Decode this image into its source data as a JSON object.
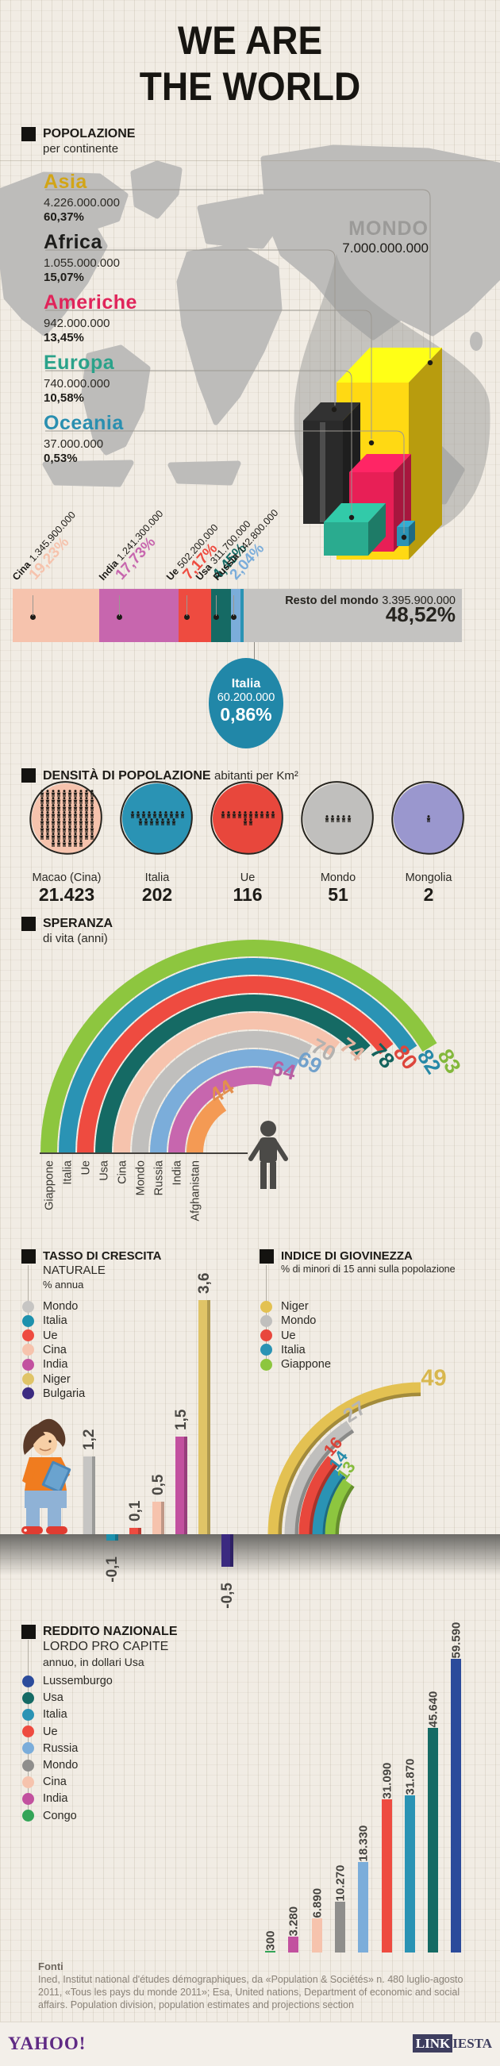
{
  "page": {
    "title_line1": "WE ARE",
    "title_line2": "THE WORLD"
  },
  "population": {
    "heading": "POPOLAZIONE",
    "subheading": "per continente",
    "world": {
      "label": "MONDO",
      "value": "7.000.000.000"
    },
    "continents": [
      {
        "name": "Asia",
        "value": "4.226.000.000",
        "pct": "60,37%",
        "color": "#d2a517"
      },
      {
        "name": "Africa",
        "value": "1.055.000.000",
        "pct": "15,07%",
        "color": "#1d1d1b"
      },
      {
        "name": "Americhe",
        "value": "942.000.000",
        "pct": "13,45%",
        "color": "#e0245a"
      },
      {
        "name": "Europa",
        "value": "740.000.000",
        "pct": "10,58%",
        "color": "#2aa28a"
      },
      {
        "name": "Oceania",
        "value": "37.000.000",
        "pct": "0,53%",
        "color": "#2a8fb0"
      }
    ],
    "cube_colors": {
      "Asia": "#ffd913",
      "Africa": "#2a2a2a",
      "Americhe": "#e81f56",
      "Europa": "#2aab8f",
      "Oceania": "#2a93b4"
    }
  },
  "share": {
    "segments": [
      {
        "name": "Cina",
        "value": "1.345.900.000",
        "pct": "19,23%",
        "pct_num": 19.23,
        "color": "#f6c3ad"
      },
      {
        "name": "India",
        "value": "1.241.300.000",
        "pct": "17,73%",
        "pct_num": 17.73,
        "color": "#c766ae"
      },
      {
        "name": "Ue",
        "value": "502.200.000",
        "pct": "7,17%",
        "pct_num": 7.17,
        "color": "#ee4b40"
      },
      {
        "name": "Usa",
        "value": "311.700.000",
        "pct": "4,45%",
        "pct_num": 4.45,
        "color": "#156a64"
      },
      {
        "name": "Russia",
        "value": "142.800.000",
        "pct": "2,04%",
        "pct_num": 2.04,
        "color": "#7badda"
      }
    ],
    "italy": {
      "name": "Italia",
      "value": "60.200.000",
      "pct": "0,86%",
      "pct_num": 0.86,
      "color": "#2a93b4",
      "circle_color": "#2187a8"
    },
    "rest": {
      "name": "Resto del mondo",
      "value": "3.395.900.000",
      "pct": "48,52%",
      "pct_num": 48.52,
      "color": "#c4c3c1"
    }
  },
  "density": {
    "heading": "DENSITÀ DI POPOLAZIONE",
    "subheading": "abitanti per Km²",
    "items": [
      {
        "name": "Macao (Cina)",
        "value": "21.423",
        "color": "#f6c3ad",
        "people": 76
      },
      {
        "name": "Italia",
        "value": "202",
        "color": "#2a93b4",
        "people": 17
      },
      {
        "name": "Ue",
        "value": "116",
        "color": "#e8473c",
        "people": 12
      },
      {
        "name": "Mondo",
        "value": "51",
        "color": "#c0bfbd",
        "people": 5
      },
      {
        "name": "Mongolia",
        "value": "2",
        "color": "#9a97ce",
        "people": 1
      }
    ]
  },
  "life": {
    "heading": "SPERANZA",
    "subheading": "di vita (anni)",
    "items": [
      {
        "name": "Giappone",
        "value": 83,
        "label": "83",
        "color": "#8dc63f"
      },
      {
        "name": "Italia",
        "value": 82,
        "label": "82",
        "color": "#2a93b4"
      },
      {
        "name": "Ue",
        "value": 80,
        "label": "80",
        "color": "#ee4b40"
      },
      {
        "name": "Usa",
        "value": 78,
        "label": "78",
        "color": "#156a64"
      },
      {
        "name": "Cina",
        "value": 74,
        "label": "74",
        "color": "#f6c3ad"
      },
      {
        "name": "Mondo",
        "value": 70,
        "label": "70",
        "color": "#c0bfbd"
      },
      {
        "name": "Russia",
        "value": 69,
        "label": "69",
        "color": "#7badda"
      },
      {
        "name": "India",
        "value": 64,
        "label": "64",
        "color": "#c766ae"
      },
      {
        "name": "Afghanistan",
        "value": 44,
        "label": "44",
        "color": "#f49a54"
      }
    ]
  },
  "growth": {
    "heading": "TASSO DI CRESCITA",
    "heading2": "NATURALE",
    "subheading": "% annua",
    "items": [
      {
        "name": "Mondo",
        "value": 1.2,
        "label": "1,2",
        "color": "#c6c5c3"
      },
      {
        "name": "Italia",
        "value": -0.1,
        "label": "-0,1",
        "color": "#1d91ad"
      },
      {
        "name": "Ue",
        "value": 0.1,
        "label": "0,1",
        "color": "#ee4b40"
      },
      {
        "name": "Cina",
        "value": 0.5,
        "label": "0,5",
        "color": "#f6c3ad"
      },
      {
        "name": "India",
        "value": 1.5,
        "label": "1,5",
        "color": "#c2519f"
      },
      {
        "name": "Niger",
        "value": 3.6,
        "label": "3,6",
        "color": "#e0c467"
      },
      {
        "name": "Bulgaria",
        "value": -0.5,
        "label": "-0,5",
        "color": "#3b2a80"
      }
    ]
  },
  "youth": {
    "heading": "INDICE DI GIOVINEZZA",
    "subheading": "% di minori di 15 anni sulla popolazione",
    "items": [
      {
        "name": "Niger",
        "value": 49,
        "label": "49",
        "color": "#e3c152"
      },
      {
        "name": "Mondo",
        "value": 27,
        "label": "27",
        "color": "#c0bfbd"
      },
      {
        "name": "Ue",
        "value": 16,
        "label": "16",
        "color": "#e8473c"
      },
      {
        "name": "Italia",
        "value": 14,
        "label": "14",
        "color": "#2a93b4"
      },
      {
        "name": "Giappone",
        "value": 13,
        "label": "13",
        "color": "#8dc63f"
      }
    ]
  },
  "income": {
    "heading": "REDDITO NAZIONALE",
    "heading2": "LORDO PRO CAPITE",
    "subheading": "annuo, in dollari Usa",
    "items": [
      {
        "name": "Lussemburgo",
        "value": 59590,
        "label": "59.590",
        "color": "#2b4b9b"
      },
      {
        "name": "Usa",
        "value": 45640,
        "label": "45.640",
        "color": "#156a64"
      },
      {
        "name": "Italia",
        "value": 31870,
        "label": "31.870",
        "color": "#2a93b4"
      },
      {
        "name": "Ue",
        "value": 31090,
        "label": "31.090",
        "color": "#ee4b40"
      },
      {
        "name": "Russia",
        "value": 18330,
        "label": "18.330",
        "color": "#7badda"
      },
      {
        "name": "Mondo",
        "value": 10270,
        "label": "10.270",
        "color": "#8f8e8c"
      },
      {
        "name": "Cina",
        "value": 6890,
        "label": "6.890",
        "color": "#f6c3ad"
      },
      {
        "name": "India",
        "value": 3280,
        "label": "3.280",
        "color": "#c2519f"
      },
      {
        "name": "Congo",
        "value": 300,
        "label": "300",
        "color": "#33a457"
      }
    ]
  },
  "footer": {
    "heading": "Fonti",
    "line1": "Ined, Institut national d'études démographiques, da «Population & Sociétés» n. 480 luglio-agosto",
    "line2": "2011, «Tous les pays du monde 2011»; Esa, United nations, Department of economic and social",
    "line3": "affairs. Population division, population estimates and projections section"
  },
  "logos": {
    "yahoo": "YAHOO!",
    "linkiesta_link": "LINK",
    "linkiesta_iesta": "IESTA"
  },
  "chart_data": [
    {
      "id": "popolazione-per-continente",
      "type": "bar",
      "title": "POPOLAZIONE per continente",
      "categories": [
        "Asia",
        "Africa",
        "Americhe",
        "Europa",
        "Oceania"
      ],
      "values": [
        4226000000,
        1055000000,
        942000000,
        740000000,
        37000000
      ],
      "pct": [
        60.37,
        15.07,
        13.45,
        10.58,
        0.53
      ],
      "annotation": "MONDO 7.000.000.000"
    },
    {
      "id": "quota-popolazione-paesi",
      "type": "bar",
      "stacked": true,
      "categories": [
        "Cina",
        "India",
        "Ue",
        "Usa",
        "Russia",
        "Italia",
        "Resto del mondo"
      ],
      "values": [
        1345900000,
        1241300000,
        502200000,
        311700000,
        142800000,
        60200000,
        3395900000
      ],
      "pct": [
        19.23,
        17.73,
        7.17,
        4.45,
        2.04,
        0.86,
        48.52
      ]
    },
    {
      "id": "densita-popolazione",
      "type": "table",
      "title": "DENSITÀ DI POPOLAZIONE abitanti per Km²",
      "categories": [
        "Macao (Cina)",
        "Italia",
        "Ue",
        "Mondo",
        "Mongolia"
      ],
      "values": [
        21423,
        202,
        116,
        51,
        2
      ]
    },
    {
      "id": "speranza-di-vita",
      "type": "bar",
      "radial": true,
      "title": "SPERANZA di vita (anni)",
      "categories": [
        "Giappone",
        "Italia",
        "Ue",
        "Usa",
        "Cina",
        "Mondo",
        "Russia",
        "India",
        "Afghanistan"
      ],
      "values": [
        83,
        82,
        80,
        78,
        74,
        70,
        69,
        64,
        44
      ]
    },
    {
      "id": "tasso-di-crescita-naturale",
      "type": "bar",
      "title": "TASSO DI CRESCITA NATURALE % annua",
      "categories": [
        "Mondo",
        "Italia",
        "Ue",
        "Cina",
        "India",
        "Niger",
        "Bulgaria"
      ],
      "values": [
        1.2,
        -0.1,
        0.1,
        0.5,
        1.5,
        3.6,
        -0.5
      ]
    },
    {
      "id": "indice-di-giovinezza",
      "type": "bar",
      "radial": true,
      "title": "INDICE DI GIOVINEZZA % di minori di 15 anni sulla popolazione",
      "categories": [
        "Niger",
        "Mondo",
        "Ue",
        "Italia",
        "Giappone"
      ],
      "values": [
        49,
        27,
        16,
        14,
        13
      ]
    },
    {
      "id": "reddito-nazionale-lordo-pro-capite",
      "type": "bar",
      "title": "REDDITO NAZIONALE LORDO PRO CAPITE annuo, in dollari Usa",
      "categories": [
        "Congo",
        "India",
        "Cina",
        "Mondo",
        "Russia",
        "Ue",
        "Italia",
        "Usa",
        "Lussemburgo"
      ],
      "values": [
        300,
        3280,
        6890,
        10270,
        18330,
        31090,
        31870,
        45640,
        59590
      ]
    }
  ]
}
